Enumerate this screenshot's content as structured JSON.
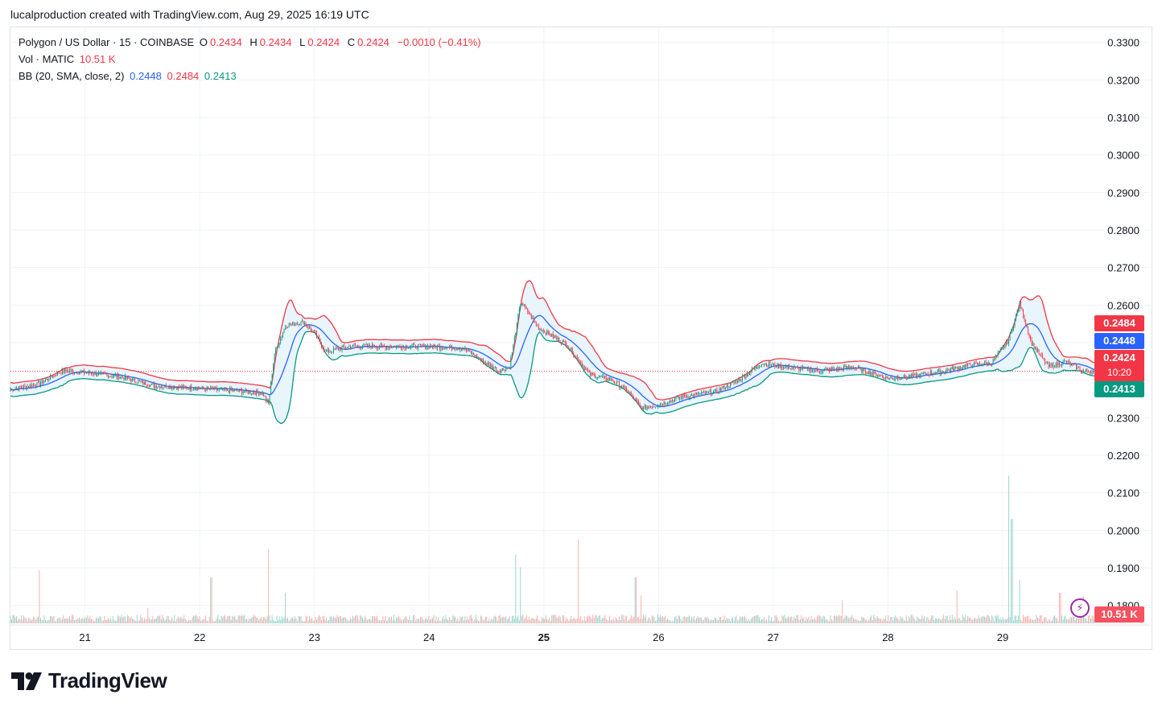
{
  "header": "lucalproduction created with TradingView.com, Aug 29, 2025 16:19 UTC",
  "legend": {
    "symbol": "Polygon / US Dollar · 15 · COINBASE",
    "o_label": "O",
    "o_value": "0.2434",
    "h_label": "H",
    "h_value": "0.2434",
    "l_label": "L",
    "l_value": "0.2424",
    "c_label": "C",
    "c_value": "0.2424",
    "change": "−0.0010 (−0.41%)",
    "vol_label": "Vol · MATIC",
    "vol_value": "10.51 K",
    "bb_label": "BB (20, SMA, close, 2)",
    "bb_basis": "0.2448",
    "bb_upper": "0.2484",
    "bb_lower": "0.2413"
  },
  "price_tags": {
    "upper": "0.2484",
    "basis": "0.2448",
    "close": "0.2424",
    "countdown": "10:20",
    "lower": "0.2413",
    "volume": "10.51 K"
  },
  "logo_text": "TradingView",
  "colors": {
    "up": "#089981",
    "down": "#f23645",
    "basis": "#2962ff",
    "upper": "#f23645",
    "lower": "#089981",
    "band_fill": "#e3f2fd"
  },
  "chart_data": {
    "type": "candlestick",
    "title": "Polygon / US Dollar · 15 · COINBASE",
    "y_ticks": [
      "0.3300",
      "0.3200",
      "0.3100",
      "0.3000",
      "0.2900",
      "0.2800",
      "0.2700",
      "0.2600",
      "0.2500",
      "0.2400",
      "0.2300",
      "0.2200",
      "0.2100",
      "0.2000",
      "0.1900",
      "0.1800"
    ],
    "ylim": [
      0.175,
      0.334
    ],
    "x_ticks": [
      {
        "label": "21",
        "day": 21,
        "bold": false
      },
      {
        "label": "22",
        "day": 22,
        "bold": false
      },
      {
        "label": "23",
        "day": 23,
        "bold": false
      },
      {
        "label": "24",
        "day": 24,
        "bold": false
      },
      {
        "label": "25",
        "day": 25,
        "bold": true
      },
      {
        "label": "26",
        "day": 26,
        "bold": false
      },
      {
        "label": "27",
        "day": 27,
        "bold": false
      },
      {
        "label": "28",
        "day": 28,
        "bold": false
      },
      {
        "label": "29",
        "day": 29,
        "bold": false
      }
    ],
    "xlim": [
      20.35,
      29.8
    ],
    "last_close": 0.2424,
    "price_path": [
      [
        20.35,
        0.2375
      ],
      [
        20.6,
        0.239
      ],
      [
        20.8,
        0.2425
      ],
      [
        21.0,
        0.242
      ],
      [
        21.3,
        0.241
      ],
      [
        21.6,
        0.2385
      ],
      [
        22.0,
        0.2378
      ],
      [
        22.3,
        0.2372
      ],
      [
        22.55,
        0.2365
      ],
      [
        22.6,
        0.2335
      ],
      [
        22.65,
        0.247
      ],
      [
        22.75,
        0.2545
      ],
      [
        22.9,
        0.2555
      ],
      [
        23.0,
        0.2525
      ],
      [
        23.1,
        0.2475
      ],
      [
        23.3,
        0.249
      ],
      [
        23.6,
        0.249
      ],
      [
        24.0,
        0.249
      ],
      [
        24.3,
        0.2485
      ],
      [
        24.6,
        0.2425
      ],
      [
        24.7,
        0.2435
      ],
      [
        24.8,
        0.261
      ],
      [
        24.95,
        0.254
      ],
      [
        25.2,
        0.2495
      ],
      [
        25.4,
        0.2415
      ],
      [
        25.6,
        0.24
      ],
      [
        25.75,
        0.2365
      ],
      [
        25.85,
        0.2325
      ],
      [
        26.0,
        0.2335
      ],
      [
        26.2,
        0.2355
      ],
      [
        26.5,
        0.237
      ],
      [
        26.7,
        0.24
      ],
      [
        26.9,
        0.2445
      ],
      [
        27.1,
        0.2435
      ],
      [
        27.4,
        0.2425
      ],
      [
        27.7,
        0.2435
      ],
      [
        28.0,
        0.2405
      ],
      [
        28.2,
        0.241
      ],
      [
        28.5,
        0.2425
      ],
      [
        28.7,
        0.244
      ],
      [
        28.9,
        0.2445
      ],
      [
        29.05,
        0.2505
      ],
      [
        29.15,
        0.2605
      ],
      [
        29.25,
        0.25
      ],
      [
        29.4,
        0.2435
      ],
      [
        29.55,
        0.245
      ],
      [
        29.7,
        0.2424
      ]
    ],
    "volume_ylim": [
      0,
      60000
    ],
    "volume_spikes": [
      [
        20.6,
        21000
      ],
      [
        21.55,
        6000
      ],
      [
        22.1,
        18000
      ],
      [
        22.6,
        29000
      ],
      [
        22.75,
        12000
      ],
      [
        24.75,
        27000
      ],
      [
        24.8,
        22000
      ],
      [
        25.3,
        33000
      ],
      [
        25.8,
        18000
      ],
      [
        25.85,
        11000
      ],
      [
        27.6,
        9000
      ],
      [
        28.6,
        13000
      ],
      [
        29.05,
        58000
      ],
      [
        29.08,
        41000
      ],
      [
        29.15,
        17000
      ],
      [
        29.5,
        12000
      ],
      [
        29.7,
        10510
      ]
    ],
    "bb": {
      "period": 20,
      "ma": "SMA",
      "source": "close",
      "mult": 2,
      "basis": 0.2448,
      "upper": 0.2484,
      "lower": 0.2413
    }
  }
}
